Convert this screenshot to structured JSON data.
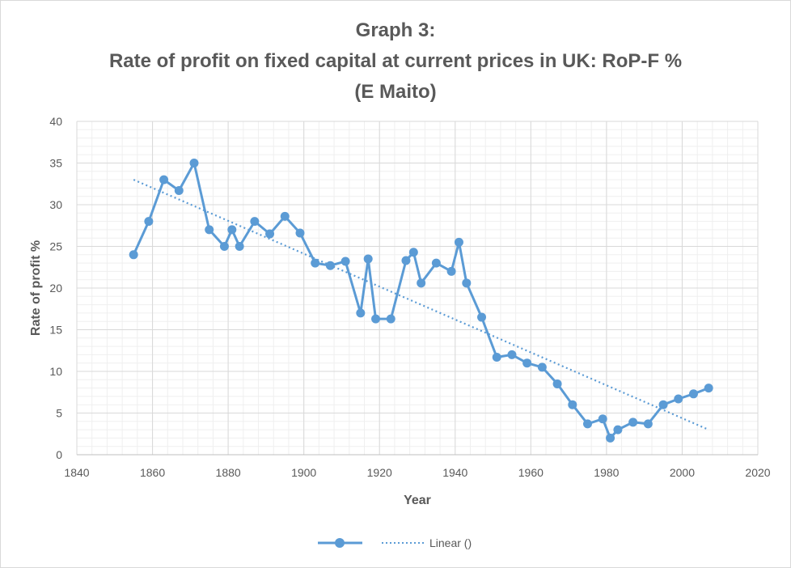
{
  "chart_data": {
    "type": "line",
    "title": "Graph 3:",
    "subtitle": "Rate of profit on fixed capital at current prices in UK: RoP-F %",
    "author": "(E Maito)",
    "xlabel": "Year",
    "ylabel": "Rate of profit %",
    "xlim": [
      1840,
      2020
    ],
    "ylim": [
      0,
      40
    ],
    "xticks": [
      1840,
      1860,
      1880,
      1900,
      1920,
      1940,
      1960,
      1980,
      2000,
      2020
    ],
    "yticks": [
      0,
      5,
      10,
      15,
      20,
      25,
      30,
      35,
      40
    ],
    "grid": true,
    "legend_position": "bottom",
    "series": [
      {
        "name": "",
        "kind": "line-markers",
        "color": "#5b9bd5",
        "x": [
          1855,
          1859,
          1863,
          1867,
          1871,
          1875,
          1879,
          1881,
          1883,
          1887,
          1891,
          1895,
          1899,
          1903,
          1907,
          1911,
          1915,
          1917,
          1919,
          1923,
          1927,
          1929,
          1931,
          1935,
          1939,
          1941,
          1943,
          1947,
          1951,
          1955,
          1959,
          1963,
          1967,
          1971,
          1975,
          1979,
          1981,
          1983,
          1987,
          1991,
          1995,
          1999,
          2003,
          2007
        ],
        "y": [
          24,
          28,
          33,
          31.7,
          35,
          27,
          25,
          27,
          25,
          28,
          26.5,
          28.6,
          26.6,
          23,
          22.7,
          23.2,
          17,
          23.5,
          16.3,
          16.3,
          23.3,
          24.3,
          20.6,
          23,
          22,
          25.5,
          20.6,
          16.5,
          11.7,
          12,
          11,
          10.5,
          8.5,
          6,
          3.7,
          4.3,
          2,
          3,
          3.9,
          3.7,
          6,
          6.7,
          7.3,
          8
        ]
      },
      {
        "name": "Linear ()",
        "kind": "trendline",
        "color": "#5b9bd5",
        "x": [
          1855,
          2007
        ],
        "y": [
          33,
          3
        ]
      }
    ]
  }
}
